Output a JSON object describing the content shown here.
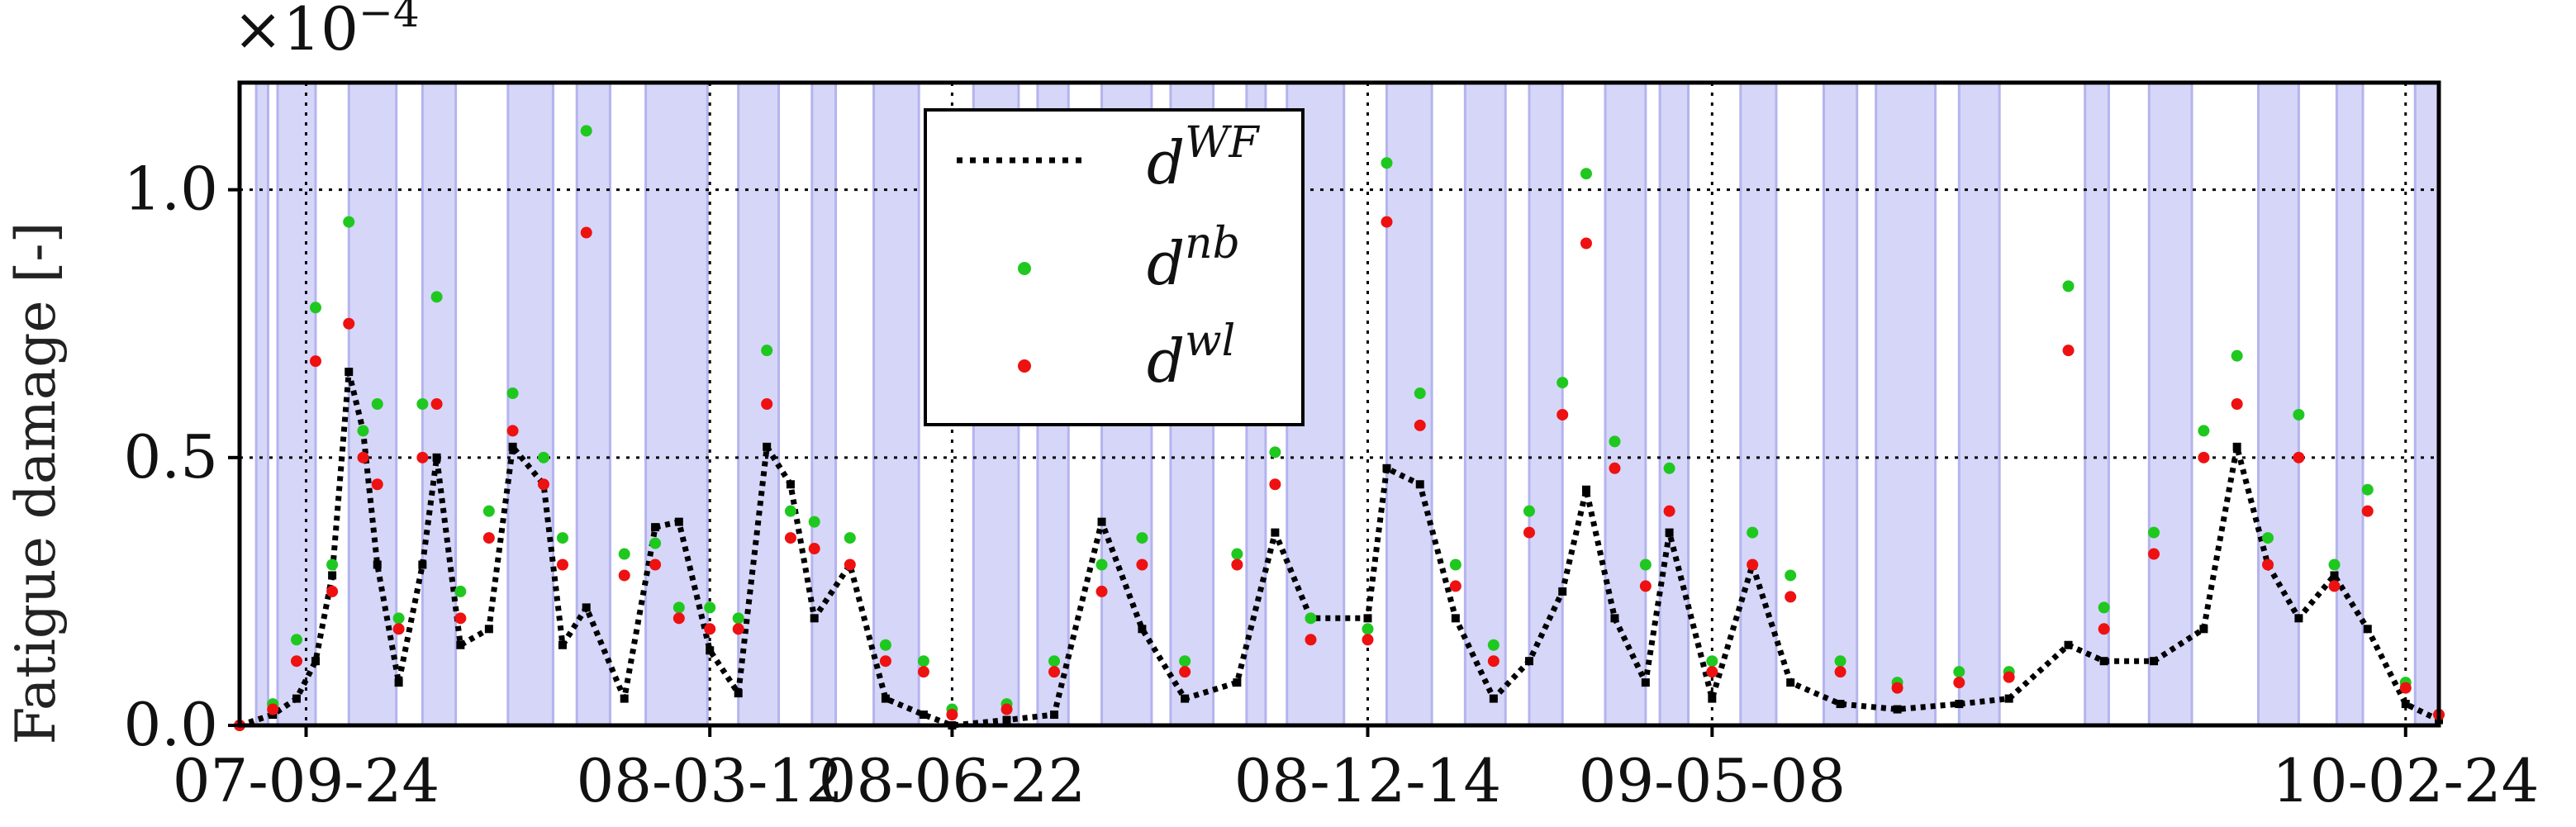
{
  "chart_data": {
    "type": "scatter",
    "ylabel": "Fatigue damage [-]",
    "y_multiplier": "×10",
    "y_multiplier_exp": "−4",
    "ylim": [
      0,
      1.2
    ],
    "yticks": [
      {
        "value": 0.0,
        "label": "0.0"
      },
      {
        "value": 0.5,
        "label": "0.5"
      },
      {
        "value": 1.0,
        "label": "1.0"
      }
    ],
    "xlim": [
      "2007-08-27",
      "2010-03-10"
    ],
    "xticks": [
      {
        "value": "2007-09-24",
        "label": "07-09-24"
      },
      {
        "value": "2008-03-12",
        "label": "08-03-12"
      },
      {
        "value": "2008-06-22",
        "label": "08-06-22"
      },
      {
        "value": "2008-12-14",
        "label": "08-12-14"
      },
      {
        "value": "2009-05-08",
        "label": "09-05-08"
      },
      {
        "value": "2010-02-24",
        "label": "10-02-24"
      }
    ],
    "grid": "dotted",
    "legend_position": "upper-center",
    "colors": {
      "wf": "#000000",
      "nb": "#1fc81f",
      "wl": "#ee1111",
      "band": "#d6d6f8",
      "band_edge": "#b4b4ee"
    },
    "shaded_periods": [
      [
        "2007-09-03",
        "2007-09-08"
      ],
      [
        "2007-09-12",
        "2007-09-28"
      ],
      [
        "2007-10-12",
        "2007-11-01"
      ],
      [
        "2007-11-12",
        "2007-11-26"
      ],
      [
        "2007-12-18",
        "2008-01-06"
      ],
      [
        "2008-01-16",
        "2008-01-30"
      ],
      [
        "2008-02-14",
        "2008-03-11"
      ],
      [
        "2008-03-24",
        "2008-04-10"
      ],
      [
        "2008-04-24",
        "2008-05-04"
      ],
      [
        "2008-05-20",
        "2008-06-08"
      ],
      [
        "2008-07-01",
        "2008-07-20"
      ],
      [
        "2008-07-28",
        "2008-08-10"
      ],
      [
        "2008-08-24",
        "2008-09-14"
      ],
      [
        "2008-09-22",
        "2008-10-10"
      ],
      [
        "2008-10-24",
        "2008-11-01"
      ],
      [
        "2008-11-10",
        "2008-12-04"
      ],
      [
        "2008-12-22",
        "2009-01-10"
      ],
      [
        "2009-01-24",
        "2009-02-10"
      ],
      [
        "2009-02-20",
        "2009-03-06"
      ],
      [
        "2009-03-24",
        "2009-04-10"
      ],
      [
        "2009-04-16",
        "2009-04-28"
      ],
      [
        "2009-05-20",
        "2009-06-04"
      ],
      [
        "2009-06-24",
        "2009-07-08"
      ],
      [
        "2009-07-16",
        "2009-08-10"
      ],
      [
        "2009-08-20",
        "2009-09-06"
      ],
      [
        "2009-10-12",
        "2009-10-22"
      ],
      [
        "2009-11-08",
        "2009-11-26"
      ],
      [
        "2009-12-24",
        "2010-01-10"
      ],
      [
        "2010-01-26",
        "2010-02-06"
      ],
      [
        "2010-02-28",
        "2010-03-10"
      ]
    ],
    "series": [
      {
        "name": "WF",
        "marker": "dotted-line",
        "points": [
          [
            "2007-08-27",
            0.0
          ],
          [
            "2007-09-10",
            0.02
          ],
          [
            "2007-09-20",
            0.05
          ],
          [
            "2007-09-28",
            0.12
          ],
          [
            "2007-10-05",
            0.28
          ],
          [
            "2007-10-12",
            0.66
          ],
          [
            "2007-10-18",
            0.55
          ],
          [
            "2007-10-24",
            0.3
          ],
          [
            "2007-11-02",
            0.08
          ],
          [
            "2007-11-12",
            0.3
          ],
          [
            "2007-11-18",
            0.5
          ],
          [
            "2007-11-28",
            0.15
          ],
          [
            "2007-12-10",
            0.18
          ],
          [
            "2007-12-20",
            0.52
          ],
          [
            "2008-01-02",
            0.45
          ],
          [
            "2008-01-10",
            0.15
          ],
          [
            "2008-01-20",
            0.22
          ],
          [
            "2008-02-05",
            0.05
          ],
          [
            "2008-02-18",
            0.37
          ],
          [
            "2008-02-28",
            0.38
          ],
          [
            "2008-03-12",
            0.14
          ],
          [
            "2008-03-24",
            0.06
          ],
          [
            "2008-04-05",
            0.52
          ],
          [
            "2008-04-15",
            0.45
          ],
          [
            "2008-04-25",
            0.2
          ],
          [
            "2008-05-10",
            0.3
          ],
          [
            "2008-05-25",
            0.05
          ],
          [
            "2008-06-10",
            0.02
          ],
          [
            "2008-06-22",
            0.0
          ],
          [
            "2008-07-15",
            0.01
          ],
          [
            "2008-08-04",
            0.02
          ],
          [
            "2008-08-24",
            0.38
          ],
          [
            "2008-09-10",
            0.18
          ],
          [
            "2008-09-28",
            0.05
          ],
          [
            "2008-10-20",
            0.08
          ],
          [
            "2008-11-05",
            0.36
          ],
          [
            "2008-11-20",
            0.2
          ],
          [
            "2008-12-14",
            0.2
          ],
          [
            "2008-12-22",
            0.48
          ],
          [
            "2009-01-05",
            0.45
          ],
          [
            "2009-01-20",
            0.2
          ],
          [
            "2009-02-05",
            0.05
          ],
          [
            "2009-02-20",
            0.12
          ],
          [
            "2009-03-06",
            0.25
          ],
          [
            "2009-03-16",
            0.44
          ],
          [
            "2009-03-28",
            0.2
          ],
          [
            "2009-04-10",
            0.08
          ],
          [
            "2009-04-20",
            0.36
          ],
          [
            "2009-05-08",
            0.05
          ],
          [
            "2009-05-25",
            0.3
          ],
          [
            "2009-06-10",
            0.08
          ],
          [
            "2009-07-01",
            0.04
          ],
          [
            "2009-07-25",
            0.03
          ],
          [
            "2009-08-20",
            0.04
          ],
          [
            "2009-09-10",
            0.05
          ],
          [
            "2009-10-05",
            0.15
          ],
          [
            "2009-10-20",
            0.12
          ],
          [
            "2009-11-10",
            0.12
          ],
          [
            "2009-12-01",
            0.18
          ],
          [
            "2009-12-15",
            0.52
          ],
          [
            "2009-12-28",
            0.3
          ],
          [
            "2010-01-10",
            0.2
          ],
          [
            "2010-01-25",
            0.28
          ],
          [
            "2010-02-08",
            0.18
          ],
          [
            "2010-02-24",
            0.04
          ],
          [
            "2010-03-10",
            0.01
          ]
        ]
      },
      {
        "name": "nb",
        "marker": "dot",
        "points": [
          [
            "2007-08-27",
            0.0
          ],
          [
            "2007-09-10",
            0.04
          ],
          [
            "2007-09-20",
            0.16
          ],
          [
            "2007-09-28",
            0.78
          ],
          [
            "2007-10-05",
            0.3
          ],
          [
            "2007-10-12",
            0.94
          ],
          [
            "2007-10-18",
            0.55
          ],
          [
            "2007-10-24",
            0.6
          ],
          [
            "2007-11-02",
            0.2
          ],
          [
            "2007-11-12",
            0.6
          ],
          [
            "2007-11-18",
            0.8
          ],
          [
            "2007-11-28",
            0.25
          ],
          [
            "2007-12-10",
            0.4
          ],
          [
            "2007-12-20",
            0.62
          ],
          [
            "2008-01-02",
            0.5
          ],
          [
            "2008-01-10",
            0.35
          ],
          [
            "2008-01-20",
            1.11
          ],
          [
            "2008-02-05",
            0.32
          ],
          [
            "2008-02-18",
            0.34
          ],
          [
            "2008-02-28",
            0.22
          ],
          [
            "2008-03-12",
            0.22
          ],
          [
            "2008-03-24",
            0.2
          ],
          [
            "2008-04-05",
            0.7
          ],
          [
            "2008-04-15",
            0.4
          ],
          [
            "2008-04-25",
            0.38
          ],
          [
            "2008-05-10",
            0.35
          ],
          [
            "2008-05-25",
            0.15
          ],
          [
            "2008-06-10",
            0.12
          ],
          [
            "2008-06-22",
            0.03
          ],
          [
            "2008-07-15",
            0.04
          ],
          [
            "2008-08-04",
            0.12
          ],
          [
            "2008-08-24",
            0.3
          ],
          [
            "2008-09-10",
            0.35
          ],
          [
            "2008-09-28",
            0.12
          ],
          [
            "2008-10-20",
            0.32
          ],
          [
            "2008-11-05",
            0.51
          ],
          [
            "2008-11-20",
            0.2
          ],
          [
            "2008-12-14",
            0.18
          ],
          [
            "2008-12-22",
            1.05
          ],
          [
            "2009-01-05",
            0.62
          ],
          [
            "2009-01-20",
            0.3
          ],
          [
            "2009-02-05",
            0.15
          ],
          [
            "2009-02-20",
            0.4
          ],
          [
            "2009-03-06",
            0.64
          ],
          [
            "2009-03-16",
            1.03
          ],
          [
            "2009-03-28",
            0.53
          ],
          [
            "2009-04-10",
            0.3
          ],
          [
            "2009-04-20",
            0.48
          ],
          [
            "2009-05-08",
            0.12
          ],
          [
            "2009-05-25",
            0.36
          ],
          [
            "2009-06-10",
            0.28
          ],
          [
            "2009-07-01",
            0.12
          ],
          [
            "2009-07-25",
            0.08
          ],
          [
            "2009-08-20",
            0.1
          ],
          [
            "2009-09-10",
            0.1
          ],
          [
            "2009-10-05",
            0.82
          ],
          [
            "2009-10-20",
            0.22
          ],
          [
            "2009-11-10",
            0.36
          ],
          [
            "2009-12-01",
            0.55
          ],
          [
            "2009-12-15",
            0.69
          ],
          [
            "2009-12-28",
            0.35
          ],
          [
            "2010-01-10",
            0.58
          ],
          [
            "2010-01-25",
            0.3
          ],
          [
            "2010-02-08",
            0.44
          ],
          [
            "2010-02-24",
            0.08
          ],
          [
            "2010-03-10",
            0.02
          ]
        ]
      },
      {
        "name": "wl",
        "marker": "dot",
        "points": [
          [
            "2007-08-27",
            0.0
          ],
          [
            "2007-09-10",
            0.03
          ],
          [
            "2007-09-20",
            0.12
          ],
          [
            "2007-09-28",
            0.68
          ],
          [
            "2007-10-05",
            0.25
          ],
          [
            "2007-10-12",
            0.75
          ],
          [
            "2007-10-18",
            0.5
          ],
          [
            "2007-10-24",
            0.45
          ],
          [
            "2007-11-02",
            0.18
          ],
          [
            "2007-11-12",
            0.5
          ],
          [
            "2007-11-18",
            0.6
          ],
          [
            "2007-11-28",
            0.2
          ],
          [
            "2007-12-10",
            0.35
          ],
          [
            "2007-12-20",
            0.55
          ],
          [
            "2008-01-02",
            0.45
          ],
          [
            "2008-01-10",
            0.3
          ],
          [
            "2008-01-20",
            0.92
          ],
          [
            "2008-02-05",
            0.28
          ],
          [
            "2008-02-18",
            0.3
          ],
          [
            "2008-02-28",
            0.2
          ],
          [
            "2008-03-12",
            0.18
          ],
          [
            "2008-03-24",
            0.18
          ],
          [
            "2008-04-05",
            0.6
          ],
          [
            "2008-04-15",
            0.35
          ],
          [
            "2008-04-25",
            0.33
          ],
          [
            "2008-05-10",
            0.3
          ],
          [
            "2008-05-25",
            0.12
          ],
          [
            "2008-06-10",
            0.1
          ],
          [
            "2008-06-22",
            0.02
          ],
          [
            "2008-07-15",
            0.03
          ],
          [
            "2008-08-04",
            0.1
          ],
          [
            "2008-08-24",
            0.25
          ],
          [
            "2008-09-10",
            0.3
          ],
          [
            "2008-09-28",
            0.1
          ],
          [
            "2008-10-20",
            0.3
          ],
          [
            "2008-11-05",
            0.45
          ],
          [
            "2008-11-20",
            0.16
          ],
          [
            "2008-12-14",
            0.16
          ],
          [
            "2008-12-22",
            0.94
          ],
          [
            "2009-01-05",
            0.56
          ],
          [
            "2009-01-20",
            0.26
          ],
          [
            "2009-02-05",
            0.12
          ],
          [
            "2009-02-20",
            0.36
          ],
          [
            "2009-03-06",
            0.58
          ],
          [
            "2009-03-16",
            0.9
          ],
          [
            "2009-03-28",
            0.48
          ],
          [
            "2009-04-10",
            0.26
          ],
          [
            "2009-04-20",
            0.4
          ],
          [
            "2009-05-08",
            0.1
          ],
          [
            "2009-05-25",
            0.3
          ],
          [
            "2009-06-10",
            0.24
          ],
          [
            "2009-07-01",
            0.1
          ],
          [
            "2009-07-25",
            0.07
          ],
          [
            "2009-08-20",
            0.08
          ],
          [
            "2009-09-10",
            0.09
          ],
          [
            "2009-10-05",
            0.7
          ],
          [
            "2009-10-20",
            0.18
          ],
          [
            "2009-11-10",
            0.32
          ],
          [
            "2009-12-01",
            0.5
          ],
          [
            "2009-12-15",
            0.6
          ],
          [
            "2009-12-28",
            0.3
          ],
          [
            "2010-01-10",
            0.5
          ],
          [
            "2010-01-25",
            0.26
          ],
          [
            "2010-02-08",
            0.4
          ],
          [
            "2010-02-24",
            0.07
          ],
          [
            "2010-03-10",
            0.02
          ]
        ]
      }
    ],
    "legend": [
      {
        "key": "wf",
        "base": "d",
        "sup": "WF"
      },
      {
        "key": "nb",
        "base": "d",
        "sup": "nb"
      },
      {
        "key": "wl",
        "base": "d",
        "sup": "wl"
      }
    ]
  }
}
